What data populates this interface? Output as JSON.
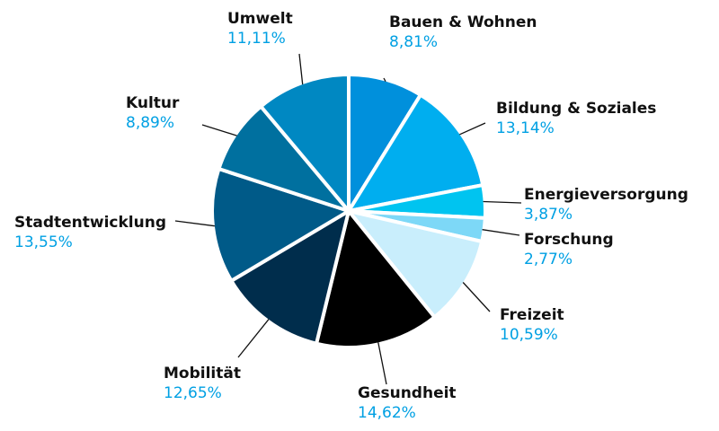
{
  "chart_data": {
    "type": "pie",
    "start_angle_deg": 0,
    "direction": "clockwise",
    "slices": [
      {
        "label": "Bauen & Wohnen",
        "value": 8.81,
        "value_label": "8,81%",
        "color": "#0090DC"
      },
      {
        "label": "Bildung & Soziales",
        "value": 13.14,
        "value_label": "13,14%",
        "color": "#00AEEF"
      },
      {
        "label": "Energieversorgung",
        "value": 3.87,
        "value_label": "3,87%",
        "color": "#00C4F0"
      },
      {
        "label": "Forschung",
        "value": 2.77,
        "value_label": "2,77%",
        "color": "#7DD8F7"
      },
      {
        "label": "Freizeit",
        "value": 10.59,
        "value_label": "10,59%",
        "color": "#C9EEFC"
      },
      {
        "label": "Gesundheit",
        "value": 14.62,
        "value_label": "14,62%",
        "color": "#000000"
      },
      {
        "label": "Mobilität",
        "value": 12.65,
        "value_label": "12,65%",
        "color": "#002D4C"
      },
      {
        "label": "Stadtentwicklung",
        "value": 13.55,
        "value_label": "13,55%",
        "color": "#005A88"
      },
      {
        "label": "Kultur",
        "value": 8.89,
        "value_label": "8,89%",
        "color": "#00709F"
      },
      {
        "label": "Umwelt",
        "value": 11.11,
        "value_label": "11,11%",
        "color": "#0088C2"
      }
    ]
  },
  "style": {
    "percent_color": "#00A0E3",
    "label_color": "#111111"
  }
}
